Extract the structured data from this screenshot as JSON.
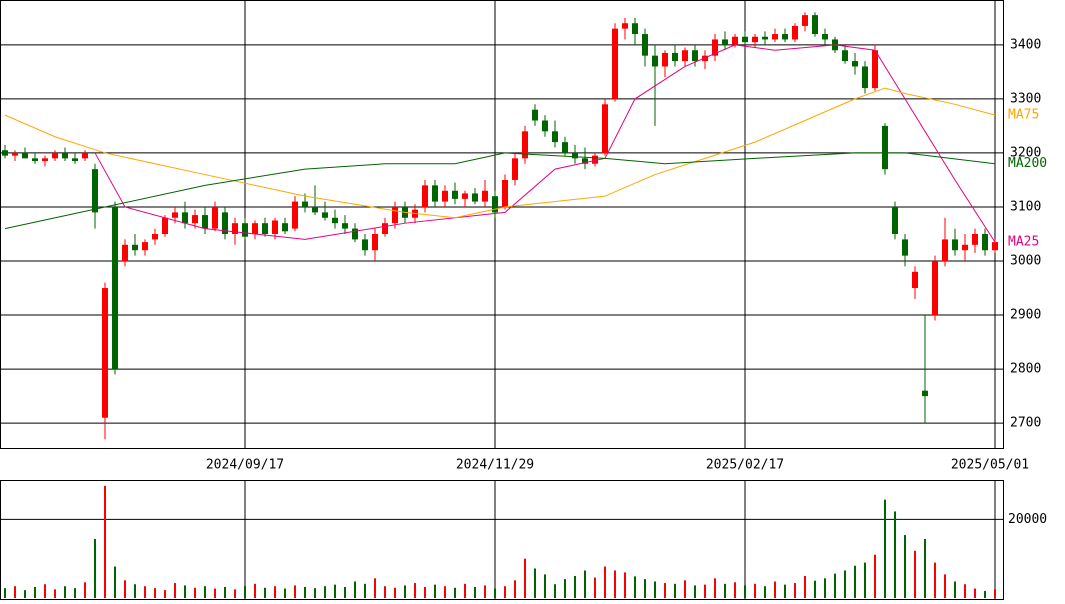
{
  "chart_data": {
    "type": "candlestick",
    "categories": [
      null,
      null,
      null,
      null,
      null,
      null,
      null,
      null,
      null,
      null,
      null,
      null,
      null,
      null,
      null,
      null,
      null,
      null,
      null,
      null,
      null,
      null,
      null,
      null,
      "2024/09/17",
      null,
      null,
      null,
      null,
      null,
      null,
      null,
      null,
      null,
      null,
      null,
      null,
      null,
      null,
      null,
      null,
      null,
      null,
      null,
      null,
      null,
      null,
      null,
      null,
      "2024/11/29",
      null,
      null,
      null,
      null,
      null,
      null,
      null,
      null,
      null,
      null,
      null,
      null,
      null,
      null,
      null,
      null,
      null,
      null,
      null,
      null,
      null,
      null,
      null,
      null,
      "2025/02/17",
      null,
      null,
      null,
      null,
      null,
      null,
      null,
      null,
      null,
      null,
      null,
      null,
      null,
      null,
      null,
      null,
      null,
      null,
      null,
      null,
      null,
      null,
      null,
      null,
      "2025/05/01"
    ],
    "ohlc": [
      [
        3205,
        3215,
        3190,
        3195
      ],
      [
        3195,
        3205,
        3185,
        3200
      ],
      [
        3200,
        3210,
        3190,
        3190
      ],
      [
        3190,
        3200,
        3180,
        3185
      ],
      [
        3185,
        3195,
        3175,
        3190
      ],
      [
        3190,
        3205,
        3185,
        3200
      ],
      [
        3200,
        3210,
        3185,
        3190
      ],
      [
        3190,
        3200,
        3180,
        3185
      ],
      [
        3190,
        3205,
        3185,
        3200
      ],
      [
        3170,
        3180,
        3060,
        3090
      ],
      [
        2710,
        2960,
        2670,
        2950
      ],
      [
        3100,
        3110,
        2790,
        2800
      ],
      [
        3000,
        3040,
        2990,
        3030
      ],
      [
        3030,
        3050,
        3010,
        3020
      ],
      [
        3020,
        3040,
        3010,
        3035
      ],
      [
        3040,
        3060,
        3030,
        3050
      ],
      [
        3050,
        3085,
        3045,
        3080
      ],
      [
        3080,
        3100,
        3070,
        3090
      ],
      [
        3090,
        3110,
        3060,
        3070
      ],
      [
        3070,
        3095,
        3060,
        3085
      ],
      [
        3085,
        3100,
        3050,
        3060
      ],
      [
        3060,
        3110,
        3055,
        3100
      ],
      [
        3090,
        3100,
        3040,
        3050
      ],
      [
        3050,
        3080,
        3030,
        3070
      ],
      [
        3070,
        3080,
        3040,
        3045
      ],
      [
        3050,
        3075,
        3040,
        3070
      ],
      [
        3070,
        3080,
        3045,
        3050
      ],
      [
        3050,
        3080,
        3040,
        3075
      ],
      [
        3070,
        3080,
        3050,
        3055
      ],
      [
        3060,
        3120,
        3055,
        3110
      ],
      [
        3110,
        3125,
        3090,
        3100
      ],
      [
        3100,
        3140,
        3085,
        3090
      ],
      [
        3090,
        3110,
        3075,
        3080
      ],
      [
        3080,
        3095,
        3060,
        3070
      ],
      [
        3070,
        3085,
        3050,
        3060
      ],
      [
        3060,
        3070,
        3035,
        3040
      ],
      [
        3040,
        3050,
        3010,
        3020
      ],
      [
        3020,
        3060,
        3000,
        3050
      ],
      [
        3050,
        3080,
        3045,
        3070
      ],
      [
        3070,
        3110,
        3060,
        3100
      ],
      [
        3100,
        3110,
        3070,
        3080
      ],
      [
        3080,
        3105,
        3070,
        3095
      ],
      [
        3100,
        3150,
        3090,
        3140
      ],
      [
        3140,
        3150,
        3100,
        3110
      ],
      [
        3110,
        3140,
        3100,
        3130
      ],
      [
        3130,
        3145,
        3105,
        3115
      ],
      [
        3115,
        3130,
        3100,
        3125
      ],
      [
        3125,
        3135,
        3105,
        3110
      ],
      [
        3110,
        3150,
        3100,
        3130
      ],
      [
        3120,
        3130,
        3080,
        3090
      ],
      [
        3100,
        3160,
        3095,
        3150
      ],
      [
        3150,
        3200,
        3140,
        3190
      ],
      [
        3190,
        3250,
        3180,
        3240
      ],
      [
        3280,
        3290,
        3250,
        3260
      ],
      [
        3260,
        3270,
        3230,
        3240
      ],
      [
        3240,
        3260,
        3210,
        3220
      ],
      [
        3220,
        3230,
        3195,
        3200
      ],
      [
        3200,
        3215,
        3180,
        3190
      ],
      [
        3190,
        3210,
        3170,
        3180
      ],
      [
        3180,
        3200,
        3175,
        3195
      ],
      [
        3200,
        3300,
        3195,
        3290
      ],
      [
        3300,
        3440,
        3295,
        3430
      ],
      [
        3430,
        3450,
        3410,
        3440
      ],
      [
        3440,
        3450,
        3400,
        3420
      ],
      [
        3420,
        3430,
        3360,
        3380
      ],
      [
        3380,
        3400,
        3250,
        3360
      ],
      [
        3360,
        3390,
        3340,
        3385
      ],
      [
        3385,
        3400,
        3360,
        3370
      ],
      [
        3370,
        3395,
        3360,
        3390
      ],
      [
        3390,
        3400,
        3360,
        3370
      ],
      [
        3370,
        3390,
        3355,
        3380
      ],
      [
        3380,
        3420,
        3370,
        3410
      ],
      [
        3410,
        3425,
        3390,
        3400
      ],
      [
        3400,
        3420,
        3395,
        3415
      ],
      [
        3415,
        3425,
        3400,
        3405
      ],
      [
        3405,
        3420,
        3395,
        3415
      ],
      [
        3415,
        3425,
        3400,
        3410
      ],
      [
        3410,
        3430,
        3405,
        3420
      ],
      [
        3420,
        3430,
        3405,
        3410
      ],
      [
        3410,
        3440,
        3405,
        3435
      ],
      [
        3435,
        3460,
        3425,
        3455
      ],
      [
        3455,
        3460,
        3415,
        3420
      ],
      [
        3420,
        3430,
        3400,
        3410
      ],
      [
        3410,
        3415,
        3385,
        3390
      ],
      [
        3390,
        3400,
        3365,
        3370
      ],
      [
        3370,
        3385,
        3345,
        3360
      ],
      [
        3360,
        3370,
        3310,
        3320
      ],
      [
        3320,
        3400,
        3315,
        3390
      ],
      [
        3250,
        3255,
        3160,
        3170
      ],
      [
        3100,
        3110,
        3040,
        3050
      ],
      [
        3040,
        3050,
        2990,
        3010
      ],
      [
        2950,
        2990,
        2930,
        2980
      ],
      [
        2760,
        2900,
        2700,
        2750
      ],
      [
        2900,
        3010,
        2890,
        3000
      ],
      [
        3000,
        3080,
        2990,
        3040
      ],
      [
        3040,
        3060,
        3010,
        3020
      ],
      [
        3020,
        3050,
        3000,
        3030
      ],
      [
        3030,
        3060,
        3015,
        3050
      ],
      [
        3050,
        3060,
        3010,
        3020
      ],
      [
        3020,
        3040,
        3015,
        3035
      ]
    ],
    "up_color": "#ff0000",
    "down_color": "#006400",
    "xlim": [
      0,
      100
    ],
    "ylim": [
      2654,
      3483
    ],
    "yticks": [
      2700,
      2800,
      2900,
      3000,
      3100,
      3200,
      3300,
      3400
    ],
    "ma": [
      {
        "name": "MA25",
        "color": "#e6007e",
        "x": [
          9,
          12,
          20,
          30,
          40,
          50,
          55,
          60,
          63,
          68,
          73,
          77,
          83,
          87,
          90,
          95,
          99
        ],
        "values": [
          3200,
          3100,
          3060,
          3040,
          3070,
          3090,
          3170,
          3190,
          3300,
          3360,
          3400,
          3390,
          3400,
          3390,
          3300,
          3150,
          3035
        ]
      },
      {
        "name": "MA75",
        "color": "#ffa500",
        "x": [
          0,
          5,
          10,
          20,
          30,
          40,
          45,
          50,
          60,
          65,
          70,
          75,
          80,
          85,
          88,
          90,
          95,
          99
        ],
        "values": [
          3270,
          3230,
          3200,
          3160,
          3120,
          3090,
          3080,
          3100,
          3120,
          3160,
          3190,
          3220,
          3260,
          3300,
          3320,
          3310,
          3290,
          3270
        ]
      },
      {
        "name": "MA200",
        "color": "#006400",
        "x": [
          0,
          10,
          20,
          30,
          38,
          45,
          50,
          60,
          66,
          75,
          85,
          90,
          99
        ],
        "values": [
          3060,
          3100,
          3140,
          3170,
          3180,
          3180,
          3200,
          3190,
          3180,
          3190,
          3200,
          3200,
          3180
        ]
      }
    ],
    "volume": {
      "values": [
        2500,
        3000,
        2000,
        2800,
        3500,
        2200,
        3000,
        2500,
        4000,
        15000,
        28500,
        8000,
        4500,
        3500,
        3000,
        2500,
        2000,
        3800,
        3200,
        2600,
        3000,
        2400,
        2800,
        2200,
        3000,
        3600,
        2600,
        3000,
        2400,
        3200,
        2800,
        2500,
        3000,
        3400,
        2800,
        4200,
        3600,
        5000,
        3000,
        2600,
        3200,
        3800,
        2800,
        3400,
        3000,
        2600,
        3600,
        2800,
        3200,
        2400,
        3000,
        4500,
        10000,
        7500,
        6000,
        3500,
        4800,
        5600,
        7000,
        5200,
        8000,
        7000,
        6500,
        5500,
        4800,
        4200,
        3800,
        3600,
        4500,
        3200,
        3400,
        5000,
        3600,
        4000,
        3200,
        3600,
        3000,
        4200,
        3400,
        3800,
        5600,
        4400,
        5000,
        6200,
        7000,
        8200,
        9000,
        11000,
        25000,
        22000,
        16000,
        12000,
        15000,
        9000,
        6000,
        4200,
        3500,
        2400,
        1800,
        2200
      ],
      "ylim": [
        0,
        30000
      ],
      "yticks": [
        20000
      ]
    }
  }
}
